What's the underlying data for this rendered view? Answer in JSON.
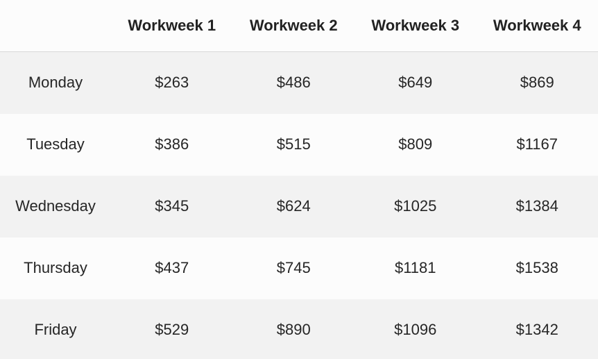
{
  "table": {
    "corner": "",
    "headers": [
      "Workweek 1",
      "Workweek 2",
      "Workweek 3",
      "Workweek 4"
    ],
    "rows": [
      {
        "day": "Monday",
        "values": [
          "$263",
          "$486",
          "$649",
          "$869"
        ]
      },
      {
        "day": "Tuesday",
        "values": [
          "$386",
          "$515",
          "$809",
          "$1167"
        ]
      },
      {
        "day": "Wednesday",
        "values": [
          "$345",
          "$624",
          "$1025",
          "$1384"
        ]
      },
      {
        "day": "Thursday",
        "values": [
          "$437",
          "$745",
          "$1181",
          "$1538"
        ]
      },
      {
        "day": "Friday",
        "values": [
          "$529",
          "$890",
          "$1096",
          "$1342"
        ]
      }
    ]
  },
  "colors": {
    "header_background": "#fcfcfc",
    "row_odd_background": "#f2f2f2",
    "row_even_background": "#fcfcfc",
    "header_divider": "#d9d9d9",
    "text": "#222222"
  }
}
